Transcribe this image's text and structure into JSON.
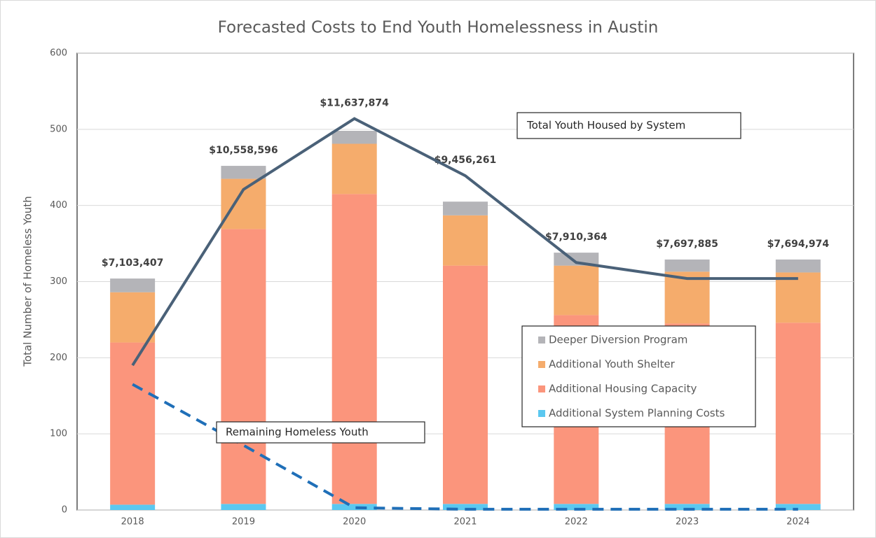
{
  "chart_data": {
    "type": "bar",
    "title": "Forecasted Costs to End Youth Homelessness in Austin",
    "y_label": "Total Number of Homeless Youth",
    "categories": [
      "2018",
      "2019",
      "2020",
      "2021",
      "2022",
      "2023",
      "2024"
    ],
    "series": [
      {
        "name": "Additional System Planning Costs",
        "color": "#5bc8f0",
        "values": [
          7,
          8,
          8,
          8,
          8,
          8,
          8
        ]
      },
      {
        "name": "Additional Housing Capacity",
        "color": "#fb957c",
        "values": [
          213,
          361,
          407,
          313,
          248,
          237,
          238
        ]
      },
      {
        "name": "Additional Youth Shelter",
        "color": "#f5ac6c",
        "values": [
          66,
          66,
          66,
          66,
          65,
          68,
          66
        ]
      },
      {
        "name": "Deeper Diversion Program",
        "color": "#b4b4b8",
        "values": [
          18,
          17,
          17,
          18,
          17,
          16,
          17
        ]
      }
    ],
    "lines": [
      {
        "name": "Total Youth Housed by System",
        "color": "#4a6178",
        "dashed": false,
        "values": [
          190,
          421,
          514,
          439,
          325,
          304,
          304
        ]
      },
      {
        "name": "Remaining Homeless Youth",
        "color": "#1f6fb8",
        "dashed": true,
        "values": [
          165,
          85,
          3,
          1,
          1,
          1,
          1
        ]
      }
    ],
    "cost_labels": [
      "$7,103,407",
      "$10,558,596",
      "$11,637,874",
      "$9,456,261",
      "$7,910,364",
      "$7,697,885",
      "$7,694,974"
    ],
    "ylim": [
      0,
      600
    ],
    "yticks": [
      0,
      100,
      200,
      300,
      400,
      500,
      600
    ],
    "grid": true
  }
}
